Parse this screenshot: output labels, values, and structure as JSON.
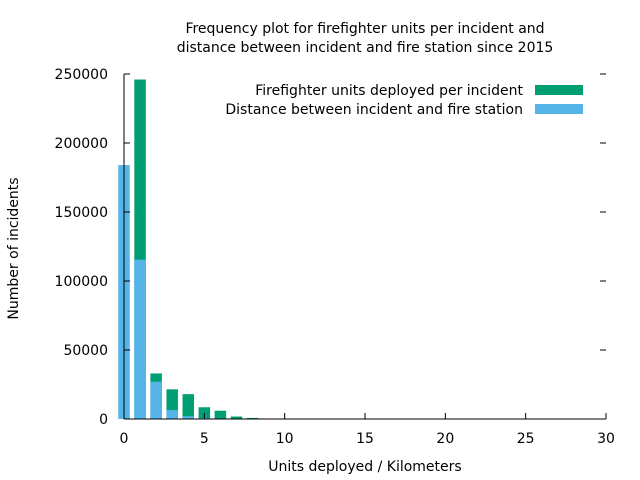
{
  "chart_data": {
    "type": "bar",
    "title_lines": [
      "Frequency plot for firefighter units per incident and",
      "distance between incident and fire station since 2015"
    ],
    "xlabel": "Units deployed / Kilometers",
    "ylabel": "Number of incidents",
    "xlim": [
      0,
      30
    ],
    "ylim": [
      0,
      250000
    ],
    "x_ticks": [
      0,
      5,
      10,
      15,
      20,
      25,
      30
    ],
    "y_ticks": [
      0,
      50000,
      100000,
      150000,
      200000,
      250000
    ],
    "legend_position": "top-right",
    "grid": false,
    "series": [
      {
        "name": "Firefighter units deployed per incident",
        "color": "#009e73",
        "x": [
          1,
          2,
          3,
          4,
          5,
          6,
          7,
          8
        ],
        "values": [
          246000,
          33000,
          21500,
          18000,
          8500,
          6000,
          1800,
          800
        ]
      },
      {
        "name": "Distance between incident and fire station",
        "color": "#56b4e9",
        "x": [
          0,
          1,
          2,
          3,
          4,
          5,
          6,
          7
        ],
        "values": [
          184000,
          115500,
          27000,
          6500,
          2000,
          700,
          300,
          100
        ]
      }
    ]
  }
}
